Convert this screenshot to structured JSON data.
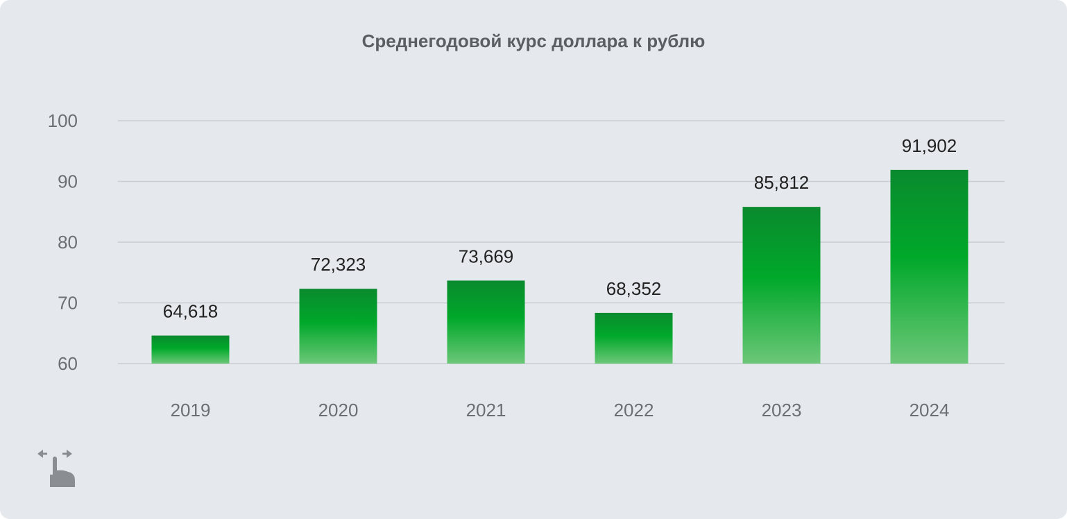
{
  "chart_data": {
    "type": "bar",
    "title": "Среднегодовой курс доллара к рублю",
    "categories": [
      "2019",
      "2020",
      "2021",
      "2022",
      "2023",
      "2024"
    ],
    "values": [
      64.618,
      72.323,
      73.669,
      68.352,
      85.812,
      91.902
    ],
    "value_labels": [
      "64,618",
      "72,323",
      "73,669",
      "68,352",
      "85,812",
      "91,902"
    ],
    "y_ticks": [
      60,
      70,
      80,
      90,
      100
    ],
    "ylim": [
      60,
      100
    ],
    "xlabel": "",
    "ylabel": "",
    "grid": true,
    "legend": "none",
    "colors": {
      "bar_top": "#0a8a2e",
      "bar_mid": "#00a82a",
      "bar_bottom": "#6cc778",
      "grid": "#c9ced4",
      "tick_text": "#6b6f73",
      "value_text": "#222222"
    }
  },
  "swipe_hint": {
    "icon": "swipe-hand-icon"
  }
}
